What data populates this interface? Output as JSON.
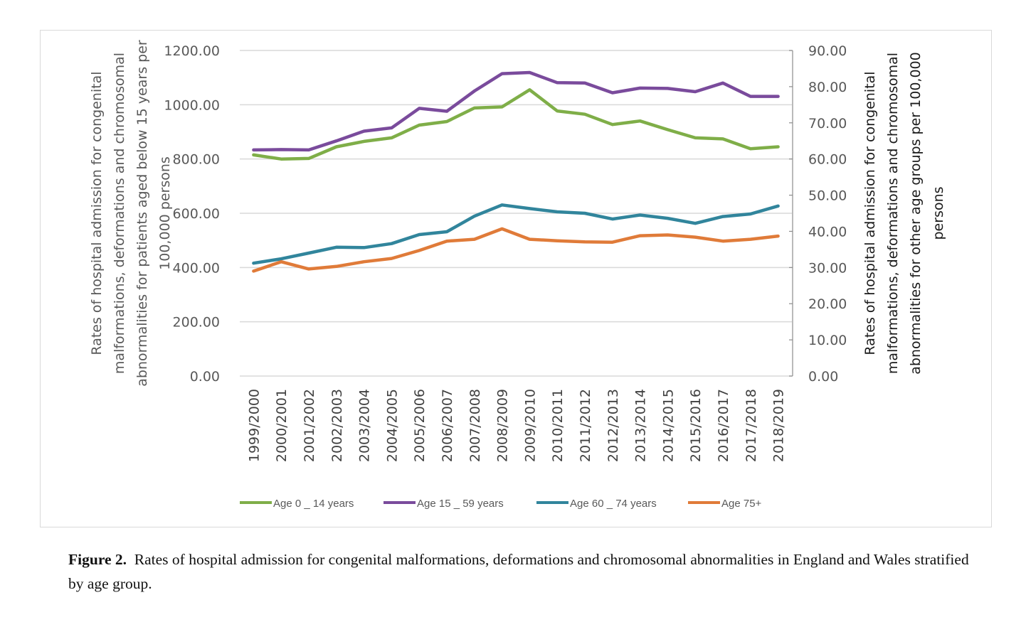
{
  "caption": {
    "label": "Figure 2.",
    "text": "Rates of hospital admission for congenital malformations, deformations and chromosomal abnormalities in England and Wales stratified by age group."
  },
  "chart_data": {
    "type": "line",
    "categories": [
      "1999/2000",
      "2000/2001",
      "2001/2002",
      "2002/2003",
      "2003/2004",
      "2004/2005",
      "2005/2006",
      "2006/2007",
      "2007/2008",
      "2008/2009",
      "2009/2010",
      "2010/2011",
      "2011/2012",
      "2012/2013",
      "2013/2014",
      "2014/2015",
      "2015/2016",
      "2016/2017",
      "2017/2018",
      "2018/2019"
    ],
    "y_left": {
      "label": "Rates of hospital admission for congenital malformations, deformations and chromosomal abnormalities for patients aged below 15 years per 100,000 persons",
      "label_lines": [
        "Rates of hospital admission for congenital",
        "malformations, deformations and chromosomal",
        "abnormalities for patients aged below 15 years per",
        "100,000 persons"
      ],
      "ylim": [
        0,
        1200
      ],
      "ticks": [
        "0.00",
        "200.00",
        "400.00",
        "600.00",
        "800.00",
        "1000.00",
        "1200.00"
      ]
    },
    "y_right": {
      "label": "Rates of hospital admission for congenital malformations, deformations and chromosomal abnormalities for other age groups per 100,000 persons",
      "label_lines": [
        "Rates of hospital admission for congenital",
        "malformations, deformations and chromosomal",
        "abnormalities for other age groups per 100,000",
        "persons"
      ],
      "ylim": [
        0,
        90
      ],
      "ticks": [
        "0.00",
        "10.00",
        "20.00",
        "30.00",
        "40.00",
        "50.00",
        "60.00",
        "70.00",
        "80.00",
        "90.00"
      ]
    },
    "grid": true,
    "legend_position": "bottom",
    "series": [
      {
        "name": "Age 0 _ 14 years",
        "axis": "left",
        "color": "#7fae48",
        "values": [
          815,
          800,
          802,
          845,
          865,
          878,
          925,
          938,
          988,
          992,
          1055,
          977,
          965,
          927,
          940,
          908,
          878,
          874,
          838,
          845
        ]
      },
      {
        "name": "Age 15 _ 59 years",
        "axis": "right",
        "color": "#7a4b9c",
        "values": [
          62.5,
          62.6,
          62.5,
          65.0,
          67.7,
          68.6,
          74.0,
          73.2,
          78.8,
          83.6,
          83.9,
          81.1,
          81.0,
          78.3,
          79.6,
          79.5,
          78.6,
          81.0,
          77.3,
          77.3
        ]
      },
      {
        "name": "Age 60 _ 74 years",
        "axis": "right",
        "color": "#31859c",
        "values": [
          31.2,
          32.4,
          34.0,
          35.6,
          35.5,
          36.6,
          39.1,
          39.9,
          44.2,
          47.3,
          46.3,
          45.4,
          45.0,
          43.4,
          44.5,
          43.6,
          42.2,
          44.1,
          44.8,
          47.0
        ]
      },
      {
        "name": "Age 75+",
        "axis": "right",
        "color": "#e07b39",
        "values": [
          29.0,
          31.6,
          29.6,
          30.3,
          31.6,
          32.5,
          34.7,
          37.3,
          37.8,
          40.7,
          37.8,
          37.4,
          37.1,
          37.0,
          38.8,
          39.0,
          38.4,
          37.3,
          37.8,
          38.7
        ]
      }
    ]
  }
}
